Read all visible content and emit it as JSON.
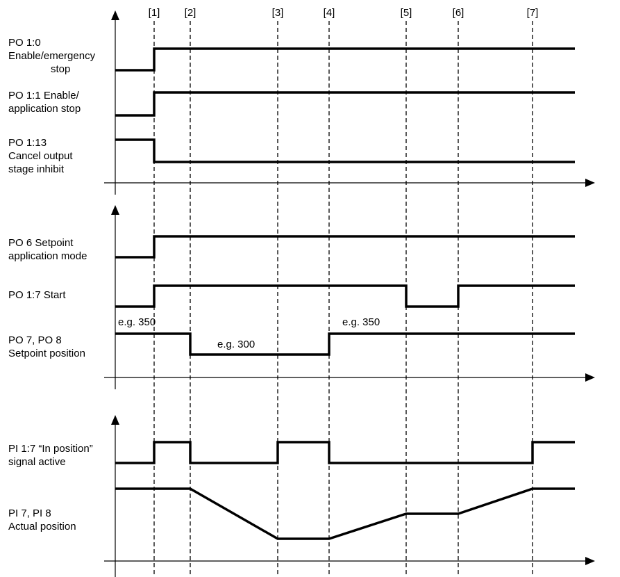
{
  "markers": [
    "[1]",
    "[2]",
    "[3]",
    "[4]",
    "[5]",
    "[6]",
    "[7]"
  ],
  "signals": [
    {
      "id": "po10",
      "label_lines": [
        "PO 1:0",
        "Enable/emergency",
        "stop"
      ],
      "wave": [
        [
          "start",
          "low"
        ],
        [
          1,
          "high"
        ],
        [
          "end",
          "high"
        ]
      ]
    },
    {
      "id": "po11",
      "label_lines": [
        "PO 1:1 Enable/",
        "application stop"
      ],
      "wave": [
        [
          "start",
          "low"
        ],
        [
          1,
          "high"
        ],
        [
          "end",
          "high"
        ]
      ]
    },
    {
      "id": "po113",
      "label_lines": [
        "PO 1:13",
        "Cancel output",
        "stage inhibit"
      ],
      "wave": [
        [
          "start",
          "high"
        ],
        [
          1,
          "low"
        ],
        [
          "end",
          "low"
        ]
      ]
    },
    {
      "id": "po6",
      "label_lines": [
        "PO 6 Setpoint",
        "application mode"
      ],
      "wave": [
        [
          "start",
          "low"
        ],
        [
          1,
          "high"
        ],
        [
          "end",
          "high"
        ]
      ]
    },
    {
      "id": "po17",
      "label_lines": [
        "PO 1:7 Start"
      ],
      "wave": [
        [
          "start",
          "low"
        ],
        [
          1,
          "high"
        ],
        [
          5,
          "low"
        ],
        [
          6,
          "high"
        ],
        [
          "end",
          "high"
        ]
      ]
    },
    {
      "id": "po78",
      "label_lines": [
        "PO 7, PO 8",
        "Setpoint position"
      ],
      "wave": [
        [
          "start",
          "high"
        ],
        [
          2,
          "low"
        ],
        [
          4,
          "high"
        ],
        [
          "end",
          "high"
        ]
      ]
    },
    {
      "id": "pi17",
      "label_lines": [
        "PI 1:7 “In position”",
        "signal active"
      ],
      "wave": [
        [
          "start",
          "low"
        ],
        [
          1,
          "high"
        ],
        [
          2,
          "low"
        ],
        [
          3,
          "high"
        ],
        [
          4,
          "low"
        ],
        [
          7,
          "high"
        ],
        [
          "end",
          "high"
        ]
      ]
    },
    {
      "id": "pi78",
      "label_lines": [
        "PI 7, PI 8",
        "Actual position"
      ],
      "ramp": [
        [
          "start",
          350
        ],
        [
          2,
          350
        ],
        [
          3,
          300
        ],
        [
          4,
          300
        ],
        [
          5,
          325
        ],
        [
          6,
          325
        ],
        [
          7,
          350
        ],
        [
          "end",
          350
        ]
      ]
    }
  ],
  "setpoint_notes": [
    "e.g. 350",
    "e.g. 300",
    "e.g. 350"
  ]
}
